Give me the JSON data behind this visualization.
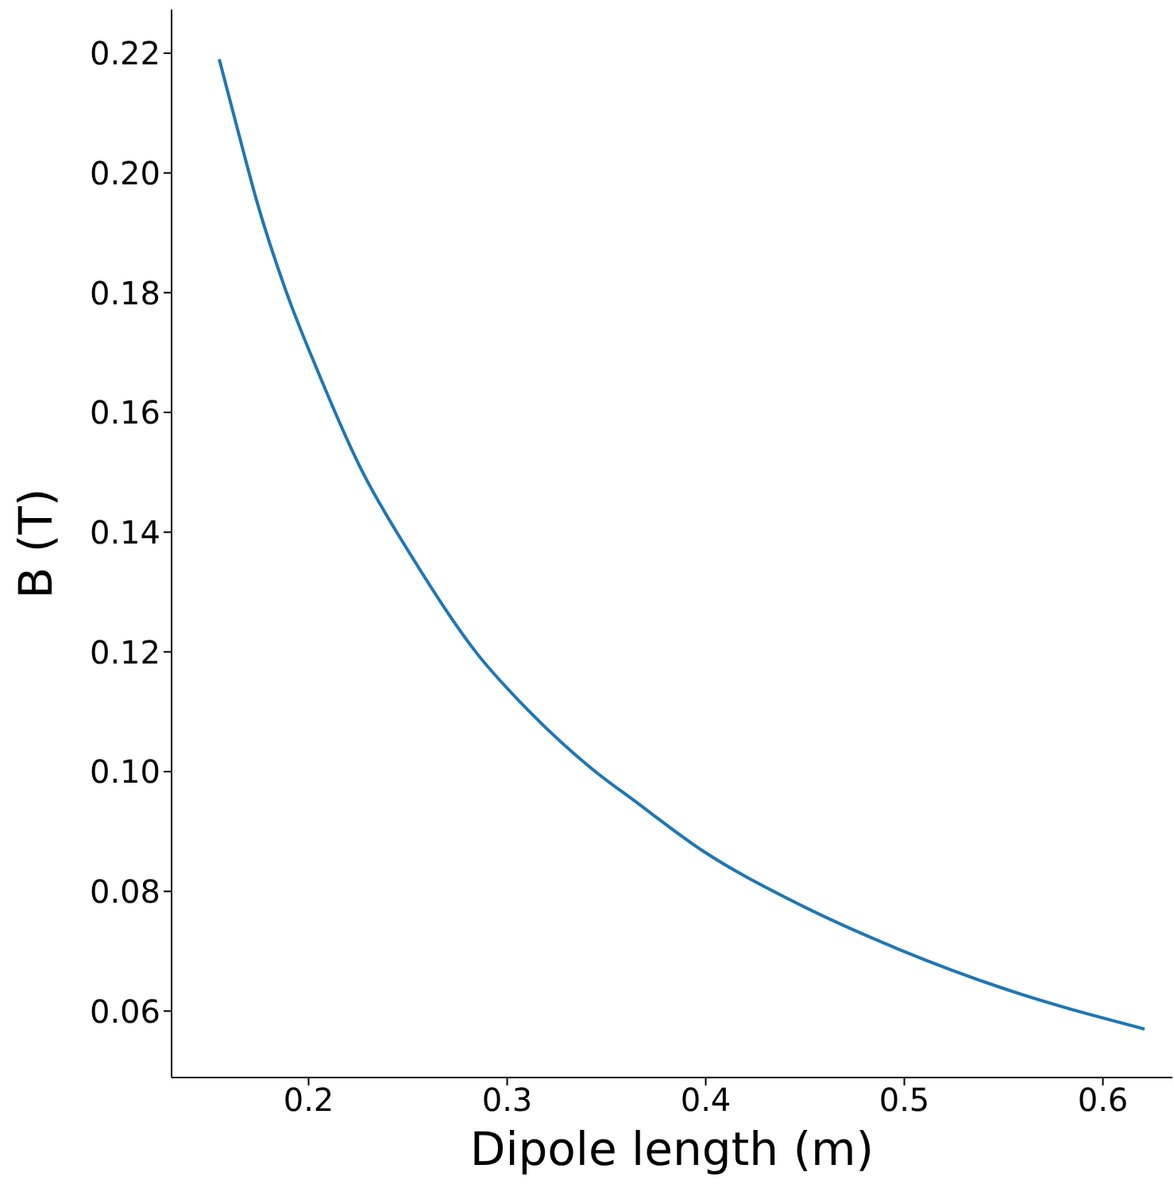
{
  "chart_data": {
    "type": "line",
    "xlabel": "Dipole length (m)",
    "ylabel": "B (T)",
    "x": [
      0.155,
      0.1647,
      0.174,
      0.1887,
      0.2046,
      0.2259,
      0.252,
      0.2844,
      0.311,
      0.3429,
      0.3642,
      0.3988,
      0.4442,
      0.4974,
      0.5506,
      0.621
    ],
    "series": [
      {
        "color": "#1f77b4",
        "values": [
          0.219,
          0.2067,
          0.1952,
          0.1802,
          0.1669,
          0.1509,
          0.1359,
          0.1199,
          0.1101,
          0.1004,
          0.0951,
          0.0867,
          0.0783,
          0.0703,
          0.0637,
          0.057
        ]
      }
    ],
    "xlim": [
      0.131,
      0.635
    ],
    "xticks": [
      {
        "value": 0.2,
        "label": "0.2"
      },
      {
        "value": 0.3,
        "label": "0.3"
      },
      {
        "value": 0.4,
        "label": "0.4"
      },
      {
        "value": 0.5,
        "label": "0.5"
      },
      {
        "value": 0.6,
        "label": "0.6"
      }
    ],
    "ylim": [
      0.0489,
      0.2273
    ],
    "yticks": [
      {
        "value": 0.06,
        "label": "0.06"
      },
      {
        "value": 0.08,
        "label": "0.08"
      },
      {
        "value": 0.1,
        "label": "0.10"
      },
      {
        "value": 0.12,
        "label": "0.12"
      },
      {
        "value": 0.14,
        "label": "0.14"
      },
      {
        "value": 0.16,
        "label": "0.16"
      },
      {
        "value": 0.18,
        "label": "0.18"
      },
      {
        "value": 0.2,
        "label": "0.20"
      },
      {
        "value": 0.22,
        "label": "0.22"
      }
    ],
    "grid": false,
    "legend": false,
    "marker": "none",
    "line_style": "solid"
  }
}
